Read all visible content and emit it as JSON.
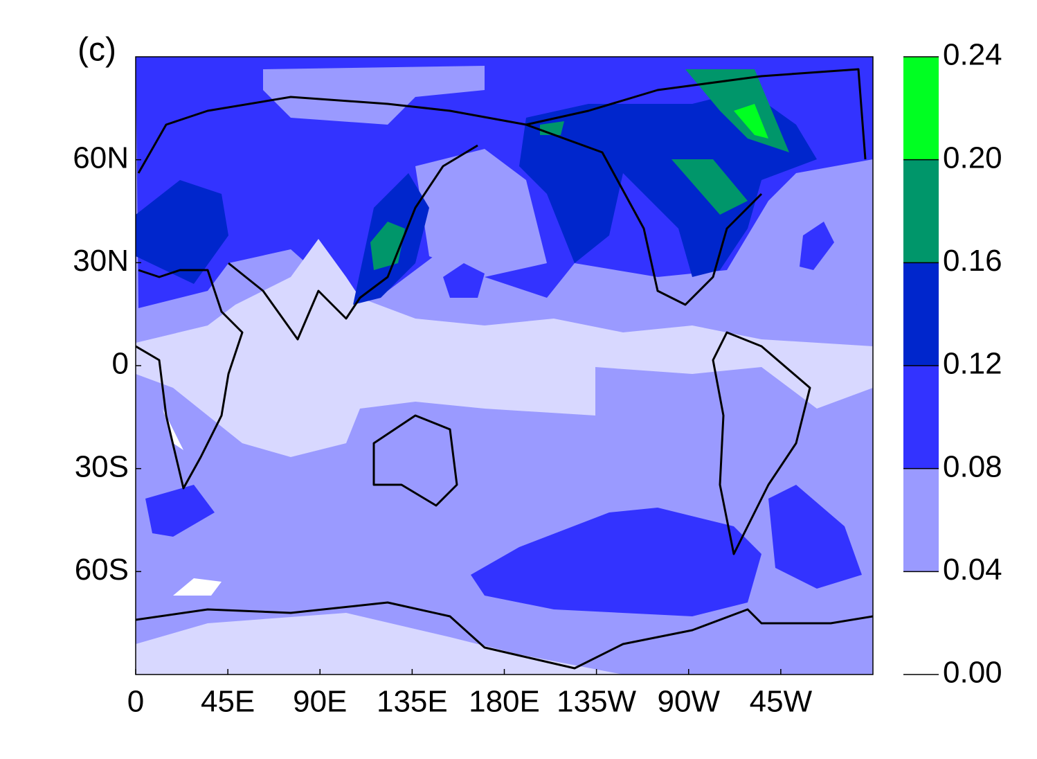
{
  "chart_data": {
    "type": "contour-map",
    "title": "(c)",
    "xlim": [
      0,
      360
    ],
    "ylim": [
      -90,
      90
    ],
    "xticks": [
      0,
      {
        "value": 45,
        "label": "45E"
      },
      {
        "value": 90,
        "label": "90E"
      },
      {
        "value": 135,
        "label": "135E"
      },
      {
        "value": 180,
        "label": "180E"
      },
      {
        "value": 225,
        "label": "135W"
      },
      {
        "value": 270,
        "label": "90W"
      },
      {
        "value": 315,
        "label": "45W"
      }
    ],
    "yticks": [
      {
        "value": -60,
        "label": "60S"
      },
      {
        "value": -30,
        "label": "30S"
      },
      0,
      {
        "value": 30,
        "label": "30N"
      },
      {
        "value": 60,
        "label": "60N"
      }
    ],
    "colorbar": {
      "levels": [
        {
          "value": 0,
          "label": "0.00"
        },
        {
          "value": 0.04,
          "label": "0.04"
        },
        {
          "value": 0.08,
          "label": "0.08"
        },
        {
          "value": 0.12,
          "label": "0.12"
        },
        {
          "value": 0.16,
          "label": "0.16"
        },
        {
          "value": 0.2,
          "label": "0.20"
        },
        {
          "value": 0.24,
          "label": "0.24"
        }
      ],
      "colors": [
        "#ffffff",
        "#9a9aff",
        "#3333ff",
        "#0026cc",
        "#00966a",
        "#00ff22"
      ]
    }
  }
}
